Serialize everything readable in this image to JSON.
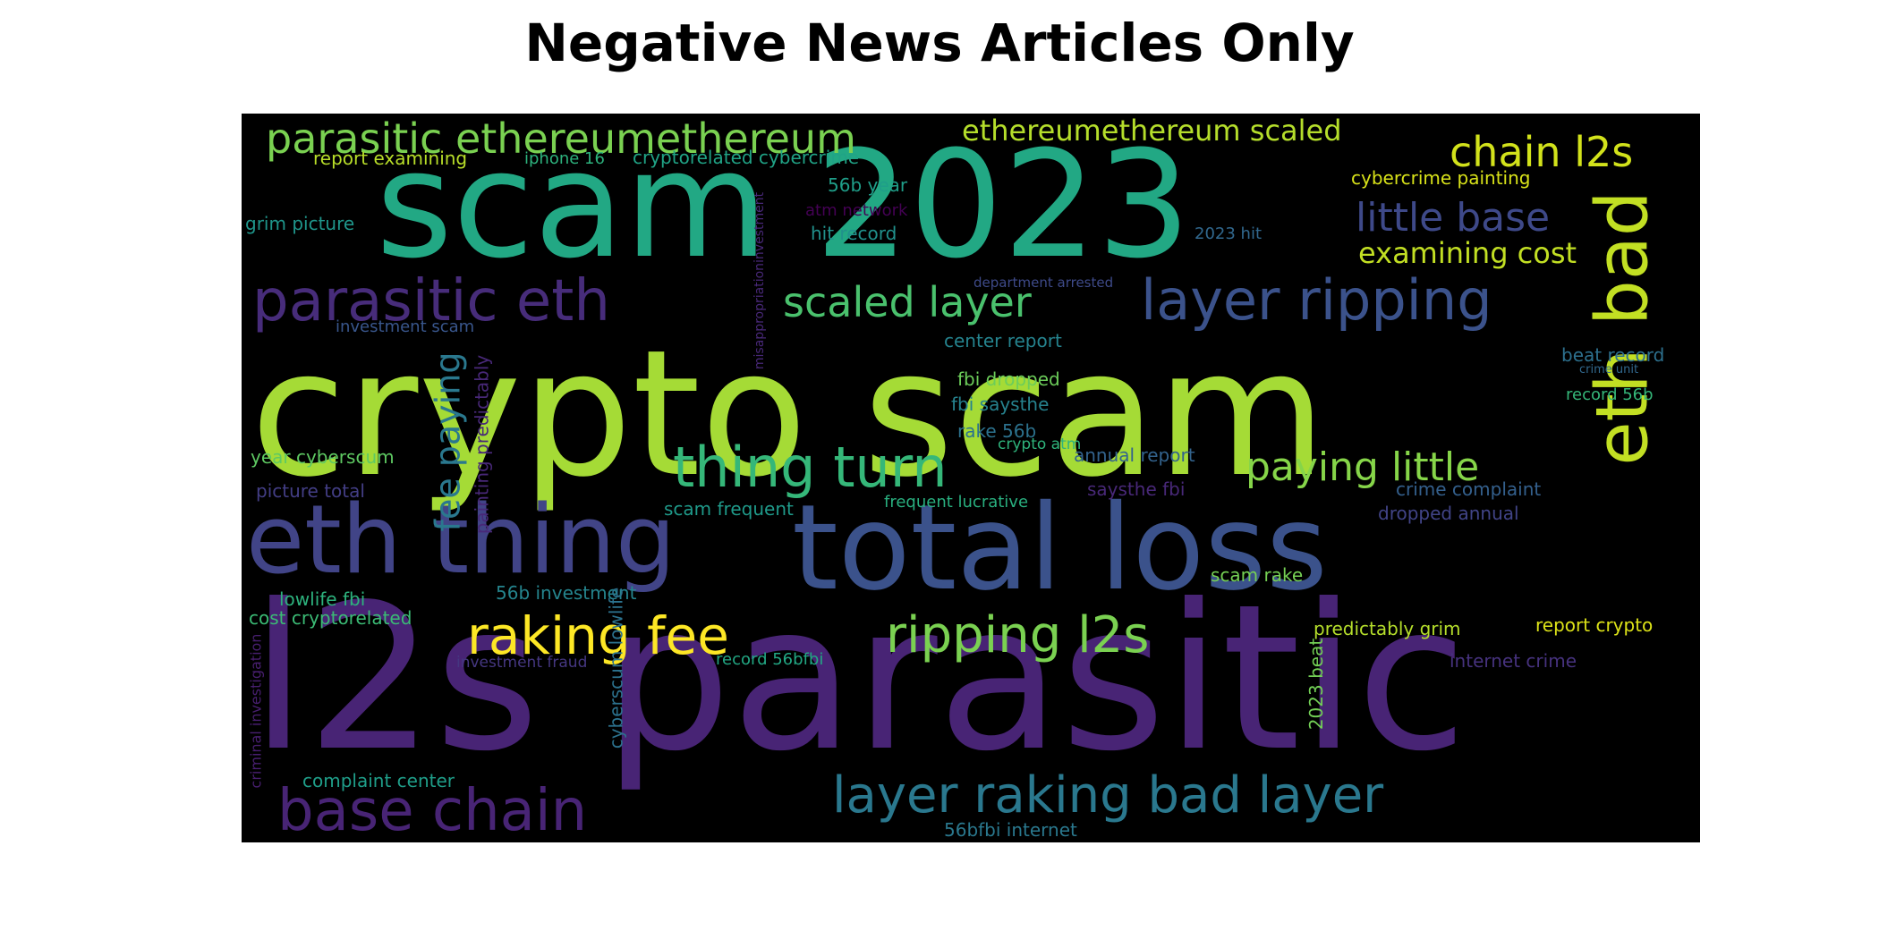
{
  "title": "Negative News Articles Only",
  "words": [
    {
      "text": "crypto scam",
      "color": "#a5db36"
    },
    {
      "text": "l2s parasitic",
      "color": "#482475"
    },
    {
      "text": "scam 2023",
      "color": "#22a884"
    },
    {
      "text": "total loss",
      "color": "#3b528b"
    },
    {
      "text": "eth thing",
      "color": "#414487"
    },
    {
      "text": "eth bad",
      "color": "#c2df23"
    },
    {
      "text": "parasitic eth",
      "color": "#472c7a"
    },
    {
      "text": "layer ripping",
      "color": "#3b528b"
    },
    {
      "text": "thing turn",
      "color": "#35b779"
    },
    {
      "text": "raking fee",
      "color": "#fde725"
    },
    {
      "text": "ripping l2s",
      "color": "#7ad151"
    },
    {
      "text": "layer raking bad layer",
      "color": "#2a788e"
    },
    {
      "text": "base chain",
      "color": "#482475"
    },
    {
      "text": "parasitic ethereumethereum",
      "color": "#7ad151"
    },
    {
      "text": "ethereumethereum scaled",
      "color": "#b5de2b"
    },
    {
      "text": "chain l2s",
      "color": "#d2e21b"
    },
    {
      "text": "little base",
      "color": "#3e4989"
    },
    {
      "text": "examining cost",
      "color": "#c2df23"
    },
    {
      "text": "scaled layer",
      "color": "#4ac16d"
    },
    {
      "text": "paying little",
      "color": "#86d549"
    },
    {
      "text": "fee paying",
      "color": "#2a788e"
    },
    {
      "text": "report examining",
      "color": "#b8de29"
    },
    {
      "text": "iphone 16",
      "color": "#2db27d"
    },
    {
      "text": "cryptorelated cybercrime",
      "color": "#20a386"
    },
    {
      "text": "56b year",
      "color": "#1f9e89"
    },
    {
      "text": "atm network",
      "color": "#440154"
    },
    {
      "text": "hit record",
      "color": "#21918c"
    },
    {
      "text": "grim picture",
      "color": "#1f968b"
    },
    {
      "text": "2023 hit",
      "color": "#31688e"
    },
    {
      "text": "cybercrime painting",
      "color": "#d8e219"
    },
    {
      "text": "department arrested",
      "color": "#3e4a89"
    },
    {
      "text": "misappropriationinvestment",
      "color": "#482878"
    },
    {
      "text": "investment scam",
      "color": "#39568c"
    },
    {
      "text": "center report",
      "color": "#25838e"
    },
    {
      "text": "fbi dropped",
      "color": "#6ccd5a"
    },
    {
      "text": "fbi saysthe",
      "color": "#26828e"
    },
    {
      "text": "rake 56b",
      "color": "#2c728e"
    },
    {
      "text": "crypto atm",
      "color": "#2fb47c"
    },
    {
      "text": "annual report",
      "color": "#33638d"
    },
    {
      "text": "saysthe fbi",
      "color": "#482878"
    },
    {
      "text": "beat record",
      "color": "#2d708e"
    },
    {
      "text": "crime unit",
      "color": "#31688e"
    },
    {
      "text": "record 56b",
      "color": "#35b779"
    },
    {
      "text": "year cyberscum",
      "color": "#5ec962"
    },
    {
      "text": "picture total",
      "color": "#433e85"
    },
    {
      "text": "scam frequent",
      "color": "#1f9a8a"
    },
    {
      "text": "frequent lucrative",
      "color": "#29af7f"
    },
    {
      "text": "crime complaint",
      "color": "#34608d"
    },
    {
      "text": "dropped annual",
      "color": "#414487"
    },
    {
      "text": "painting predictably",
      "color": "#482878"
    },
    {
      "text": "scam rake",
      "color": "#75d054"
    },
    {
      "text": "lowlife fbi",
      "color": "#2db27d"
    },
    {
      "text": "56b investment",
      "color": "#25858e"
    },
    {
      "text": "cost cryptorelated",
      "color": "#3bbb75"
    },
    {
      "text": "cyberscum lowlife",
      "color": "#2c728e"
    },
    {
      "text": "predictably grim",
      "color": "#b5de2b"
    },
    {
      "text": "report crypto",
      "color": "#dde318"
    },
    {
      "text": "investment fraud",
      "color": "#453781"
    },
    {
      "text": "record 56bfbi",
      "color": "#22a884"
    },
    {
      "text": "internet crime",
      "color": "#46327e"
    },
    {
      "text": "2023 beat",
      "color": "#73d056"
    },
    {
      "text": "criminal investigation",
      "color": "#481f70"
    },
    {
      "text": "complaint center",
      "color": "#1f9e89"
    },
    {
      "text": "56bfbi internet",
      "color": "#2a788e"
    }
  ]
}
